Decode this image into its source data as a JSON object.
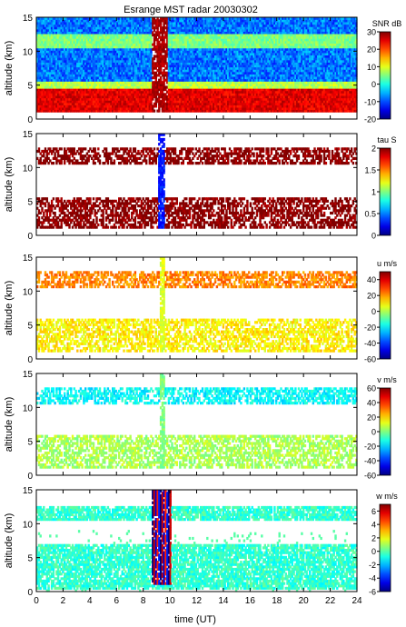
{
  "figure": {
    "title": "Esrange MST radar 20030302",
    "xlabel": "time (UT)"
  },
  "chart_data": [
    {
      "type": "heatmap",
      "title": "Esrange MST radar 20030302",
      "ylabel": "altitude (km)",
      "xlabel": "",
      "xlim": [
        0,
        24
      ],
      "ylim": [
        0,
        15
      ],
      "xticks": [
        0,
        2,
        4,
        6,
        8,
        10,
        12,
        14,
        16,
        18,
        20,
        22,
        24
      ],
      "yticks": [
        0,
        5,
        10,
        15
      ],
      "colorbar": {
        "label": "SNR dB",
        "range": [
          -20,
          30
        ],
        "ticks": [
          -20,
          -10,
          0,
          10,
          20,
          30
        ]
      },
      "colorscale": "jet",
      "pattern": "dense",
      "coverage_altitude_km": [
        1,
        15
      ],
      "layers": [
        {
          "altitude_km": [
            1,
            4.5
          ],
          "value": 25
        },
        {
          "altitude_km": [
            4.5,
            5.5
          ],
          "value": 8
        },
        {
          "altitude_km": [
            10.5,
            12.5
          ],
          "value": 5
        }
      ],
      "background_value": -8,
      "event": {
        "time_utc": [
          8.6,
          9.8
        ],
        "altitude_km": [
          1,
          15
        ],
        "value": 28
      }
    },
    {
      "type": "heatmap",
      "ylabel": "altitude (km)",
      "xlim": [
        0,
        24
      ],
      "ylim": [
        0,
        15
      ],
      "yticks": [
        0,
        5,
        10,
        15
      ],
      "colorbar": {
        "label": "tau S",
        "range": [
          0,
          2
        ],
        "ticks": [
          0,
          0.5,
          1,
          1.5,
          2
        ]
      },
      "colorscale": "jet",
      "pattern": "sparse",
      "layers": [
        {
          "altitude_km": [
            1,
            5.5
          ],
          "value": 2
        },
        {
          "altitude_km": [
            10.5,
            13
          ],
          "value": 2
        }
      ],
      "event": {
        "time_utc": [
          9.1,
          9.5
        ],
        "altitude_km": [
          1,
          15
        ],
        "value": 0.3
      }
    },
    {
      "type": "heatmap",
      "ylabel": "altitude (km)",
      "xlim": [
        0,
        24
      ],
      "ylim": [
        0,
        15
      ],
      "yticks": [
        0,
        5,
        10,
        15
      ],
      "colorbar": {
        "label": "u m/s",
        "range": [
          -60,
          50
        ],
        "ticks": [
          -60,
          -40,
          -20,
          0,
          20,
          40
        ]
      },
      "colorscale": "jet",
      "pattern": "sparse",
      "layers": [
        {
          "altitude_km": [
            1,
            6
          ],
          "value": 10
        },
        {
          "altitude_km": [
            10.5,
            13
          ],
          "value": 22
        }
      ],
      "event": {
        "time_utc": [
          9.2,
          9.5
        ],
        "altitude_km": [
          1,
          15
        ],
        "value": 5
      }
    },
    {
      "type": "heatmap",
      "ylabel": "altitude (km)",
      "xlim": [
        0,
        24
      ],
      "ylim": [
        0,
        15
      ],
      "yticks": [
        0,
        5,
        10,
        15
      ],
      "colorbar": {
        "label": "v m/s",
        "range": [
          -60,
          60
        ],
        "ticks": [
          -60,
          -40,
          -20,
          0,
          20,
          40,
          60
        ]
      },
      "colorscale": "jet",
      "pattern": "sparse",
      "layers": [
        {
          "altitude_km": [
            1,
            6
          ],
          "value": 5
        },
        {
          "altitude_km": [
            10.5,
            13
          ],
          "value": -15
        }
      ],
      "event": {
        "time_utc": [
          9.2,
          9.5
        ],
        "altitude_km": [
          1,
          15
        ],
        "value": 0
      }
    },
    {
      "type": "heatmap",
      "ylabel": "altitude (km)",
      "xlabel": "time (UT)",
      "xlim": [
        0,
        24
      ],
      "ylim": [
        0,
        15
      ],
      "xticks": [
        0,
        2,
        4,
        6,
        8,
        10,
        12,
        14,
        16,
        18,
        20,
        22,
        24
      ],
      "yticks": [
        0,
        5,
        10,
        15
      ],
      "colorbar": {
        "label": "w m/s",
        "range": [
          -6,
          7
        ],
        "ticks": [
          -6,
          -4,
          -2,
          0,
          2,
          4,
          6
        ]
      },
      "colorscale": "jet",
      "pattern": "medium",
      "layers": [
        {
          "altitude_km": [
            0.5,
            7
          ],
          "value": -0.5
        },
        {
          "altitude_km": [
            10.5,
            12.5
          ],
          "value": -0.5
        }
      ],
      "event": {
        "time_utc": [
          8.6,
          10.0
        ],
        "altitude_km": [
          1,
          15
        ],
        "value_pattern": "alternating",
        "values": [
          -6,
          6,
          -5,
          5,
          -4
        ]
      }
    }
  ]
}
